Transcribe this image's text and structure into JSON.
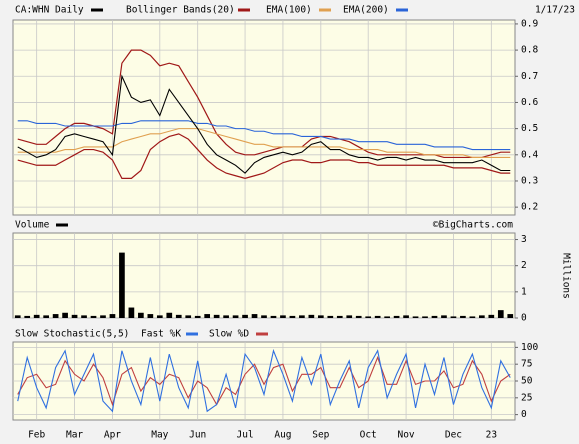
{
  "chart_data": [
    {
      "type": "line",
      "date": "1/17/23",
      "series": [
        {
          "name": "CA:WHN Daily",
          "color": "#000000",
          "values": [
            0.43,
            0.41,
            0.39,
            0.4,
            0.42,
            0.47,
            0.48,
            0.47,
            0.46,
            0.45,
            0.4,
            0.7,
            0.62,
            0.6,
            0.61,
            0.55,
            0.65,
            0.6,
            0.55,
            0.5,
            0.44,
            0.4,
            0.38,
            0.36,
            0.33,
            0.37,
            0.39,
            0.4,
            0.41,
            0.4,
            0.41,
            0.44,
            0.45,
            0.42,
            0.42,
            0.4,
            0.39,
            0.39,
            0.38,
            0.39,
            0.39,
            0.38,
            0.39,
            0.38,
            0.38,
            0.37,
            0.37,
            0.37,
            0.37,
            0.38,
            0.36,
            0.34,
            0.34
          ]
        },
        {
          "name": "EMA(100)",
          "color": "#e0a050",
          "values": [
            0.41,
            0.41,
            0.41,
            0.41,
            0.41,
            0.42,
            0.42,
            0.43,
            0.43,
            0.43,
            0.43,
            0.45,
            0.46,
            0.47,
            0.48,
            0.48,
            0.49,
            0.5,
            0.5,
            0.5,
            0.49,
            0.48,
            0.47,
            0.46,
            0.45,
            0.44,
            0.44,
            0.43,
            0.43,
            0.43,
            0.43,
            0.43,
            0.43,
            0.43,
            0.43,
            0.42,
            0.42,
            0.42,
            0.42,
            0.41,
            0.41,
            0.41,
            0.41,
            0.4,
            0.4,
            0.4,
            0.4,
            0.4,
            0.39,
            0.39,
            0.39,
            0.39,
            0.39
          ]
        },
        {
          "name": "EMA(200)",
          "color": "#2a64d8",
          "values": [
            0.53,
            0.53,
            0.52,
            0.52,
            0.52,
            0.51,
            0.51,
            0.51,
            0.51,
            0.51,
            0.51,
            0.52,
            0.52,
            0.53,
            0.53,
            0.53,
            0.53,
            0.53,
            0.53,
            0.52,
            0.52,
            0.51,
            0.51,
            0.5,
            0.5,
            0.49,
            0.49,
            0.48,
            0.48,
            0.48,
            0.47,
            0.47,
            0.47,
            0.46,
            0.46,
            0.46,
            0.45,
            0.45,
            0.45,
            0.45,
            0.44,
            0.44,
            0.44,
            0.44,
            0.43,
            0.43,
            0.43,
            0.43,
            0.42,
            0.42,
            0.42,
            0.42,
            0.42
          ]
        }
      ],
      "bands": {
        "name": "Bollinger Bands(20)",
        "color": "#a01818",
        "upper": [
          0.46,
          0.45,
          0.44,
          0.44,
          0.47,
          0.5,
          0.52,
          0.52,
          0.51,
          0.5,
          0.48,
          0.75,
          0.8,
          0.8,
          0.78,
          0.74,
          0.75,
          0.74,
          0.68,
          0.62,
          0.55,
          0.48,
          0.44,
          0.41,
          0.4,
          0.4,
          0.41,
          0.42,
          0.43,
          0.43,
          0.43,
          0.46,
          0.47,
          0.47,
          0.46,
          0.45,
          0.43,
          0.41,
          0.4,
          0.4,
          0.4,
          0.4,
          0.4,
          0.4,
          0.4,
          0.39,
          0.39,
          0.39,
          0.39,
          0.39,
          0.4,
          0.41,
          0.41
        ],
        "lower": [
          0.38,
          0.37,
          0.36,
          0.36,
          0.36,
          0.38,
          0.4,
          0.42,
          0.42,
          0.41,
          0.38,
          0.31,
          0.31,
          0.34,
          0.42,
          0.45,
          0.47,
          0.48,
          0.46,
          0.42,
          0.38,
          0.35,
          0.33,
          0.32,
          0.31,
          0.32,
          0.33,
          0.35,
          0.37,
          0.38,
          0.38,
          0.37,
          0.37,
          0.38,
          0.38,
          0.38,
          0.37,
          0.37,
          0.36,
          0.36,
          0.36,
          0.36,
          0.36,
          0.36,
          0.36,
          0.36,
          0.35,
          0.35,
          0.35,
          0.35,
          0.34,
          0.33,
          0.33
        ]
      },
      "ylim": [
        0.17,
        0.915
      ],
      "yticks": [
        0.2,
        0.3,
        0.4,
        0.5,
        0.6,
        0.7,
        0.8,
        0.9
      ],
      "grid": true
    },
    {
      "type": "bar",
      "source": "©BigCharts.com",
      "y_label": "Millions",
      "series": [
        {
          "name": "Volume",
          "color": "#000000",
          "values": [
            0.1,
            0.08,
            0.12,
            0.1,
            0.15,
            0.2,
            0.12,
            0.1,
            0.08,
            0.1,
            0.15,
            2.5,
            0.4,
            0.2,
            0.15,
            0.1,
            0.2,
            0.12,
            0.1,
            0.08,
            0.15,
            0.12,
            0.1,
            0.1,
            0.12,
            0.15,
            0.1,
            0.08,
            0.1,
            0.08,
            0.1,
            0.12,
            0.1,
            0.08,
            0.08,
            0.1,
            0.08,
            0.06,
            0.08,
            0.06,
            0.08,
            0.1,
            0.06,
            0.06,
            0.08,
            0.1,
            0.06,
            0.08,
            0.06,
            0.1,
            0.12,
            0.3,
            0.15
          ]
        }
      ],
      "ylim": [
        0,
        3.25
      ],
      "yticks": [
        0,
        1,
        2,
        3
      ],
      "grid": true
    },
    {
      "type": "line",
      "title": "Slow Stochastic(5,5)",
      "categories": [
        null,
        null,
        "Feb",
        null,
        null,
        null,
        "Mar",
        null,
        null,
        null,
        "Apr",
        null,
        null,
        null,
        null,
        "May",
        null,
        null,
        null,
        "Jun",
        null,
        null,
        null,
        null,
        "Jul",
        null,
        null,
        null,
        "Aug",
        null,
        null,
        null,
        "Sep",
        null,
        null,
        null,
        null,
        "Oct",
        null,
        null,
        null,
        "Nov",
        null,
        null,
        null,
        null,
        "Dec",
        null,
        null,
        null,
        "23",
        null,
        null
      ],
      "series": [
        {
          "name": "Fast %K",
          "color": "#3070e0",
          "values": [
            20,
            85,
            40,
            10,
            70,
            95,
            30,
            60,
            90,
            20,
            5,
            95,
            50,
            15,
            85,
            20,
            90,
            40,
            10,
            80,
            5,
            15,
            60,
            10,
            90,
            70,
            30,
            95,
            60,
            20,
            85,
            45,
            90,
            15,
            50,
            80,
            10,
            70,
            95,
            25,
            60,
            90,
            10,
            75,
            30,
            85,
            15,
            60,
            90,
            40,
            10,
            80,
            55
          ]
        },
        {
          "name": "Slow %D",
          "color": "#c04040",
          "values": [
            30,
            55,
            60,
            40,
            45,
            80,
            60,
            50,
            75,
            55,
            15,
            60,
            70,
            35,
            55,
            45,
            60,
            55,
            25,
            50,
            40,
            15,
            40,
            30,
            60,
            75,
            45,
            70,
            75,
            35,
            60,
            60,
            70,
            40,
            40,
            70,
            40,
            50,
            85,
            45,
            45,
            80,
            45,
            50,
            50,
            65,
            40,
            45,
            80,
            60,
            20,
            50,
            60
          ]
        }
      ],
      "ylim": [
        -8,
        108
      ],
      "yticks": [
        0,
        25,
        50,
        75,
        100
      ],
      "grid": true
    }
  ]
}
